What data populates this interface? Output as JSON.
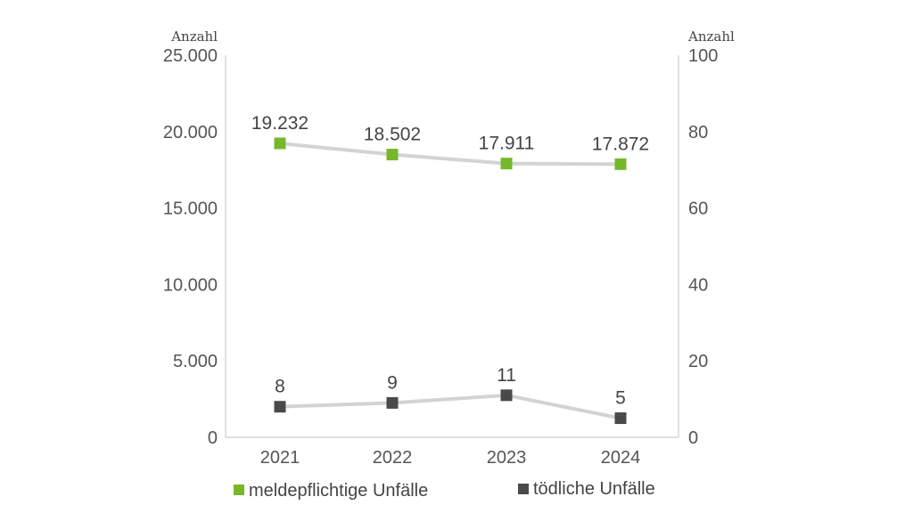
{
  "chart_data": {
    "type": "line",
    "categories": [
      "2021",
      "2022",
      "2023",
      "2024"
    ],
    "y_left": {
      "unit_label": "Anzahl",
      "range": [
        0,
        25000
      ],
      "ticks": [
        "0",
        "5.000",
        "10.000",
        "15.000",
        "20.000",
        "25.000"
      ]
    },
    "y_right": {
      "unit_label": "Anzahl",
      "range": [
        0,
        100
      ],
      "ticks": [
        "0",
        "20",
        "40",
        "60",
        "80",
        "100"
      ]
    },
    "grid": false,
    "legend_position": "bottom",
    "series": [
      {
        "name": "meldepflichtige Unfälle",
        "axis": "left",
        "values": [
          19232,
          18502,
          17911,
          17872
        ],
        "labels": [
          "19.232",
          "18.502",
          "17.911",
          "17.872"
        ],
        "marker_color": "#76b82a",
        "line_color": "#d3d3d3"
      },
      {
        "name": "tödliche Unfälle",
        "axis": "right",
        "values": [
          8,
          9,
          11,
          5
        ],
        "labels": [
          "8",
          "9",
          "11",
          "5"
        ],
        "marker_color": "#4a4a4a",
        "line_color": "#d3d3d3"
      }
    ]
  }
}
